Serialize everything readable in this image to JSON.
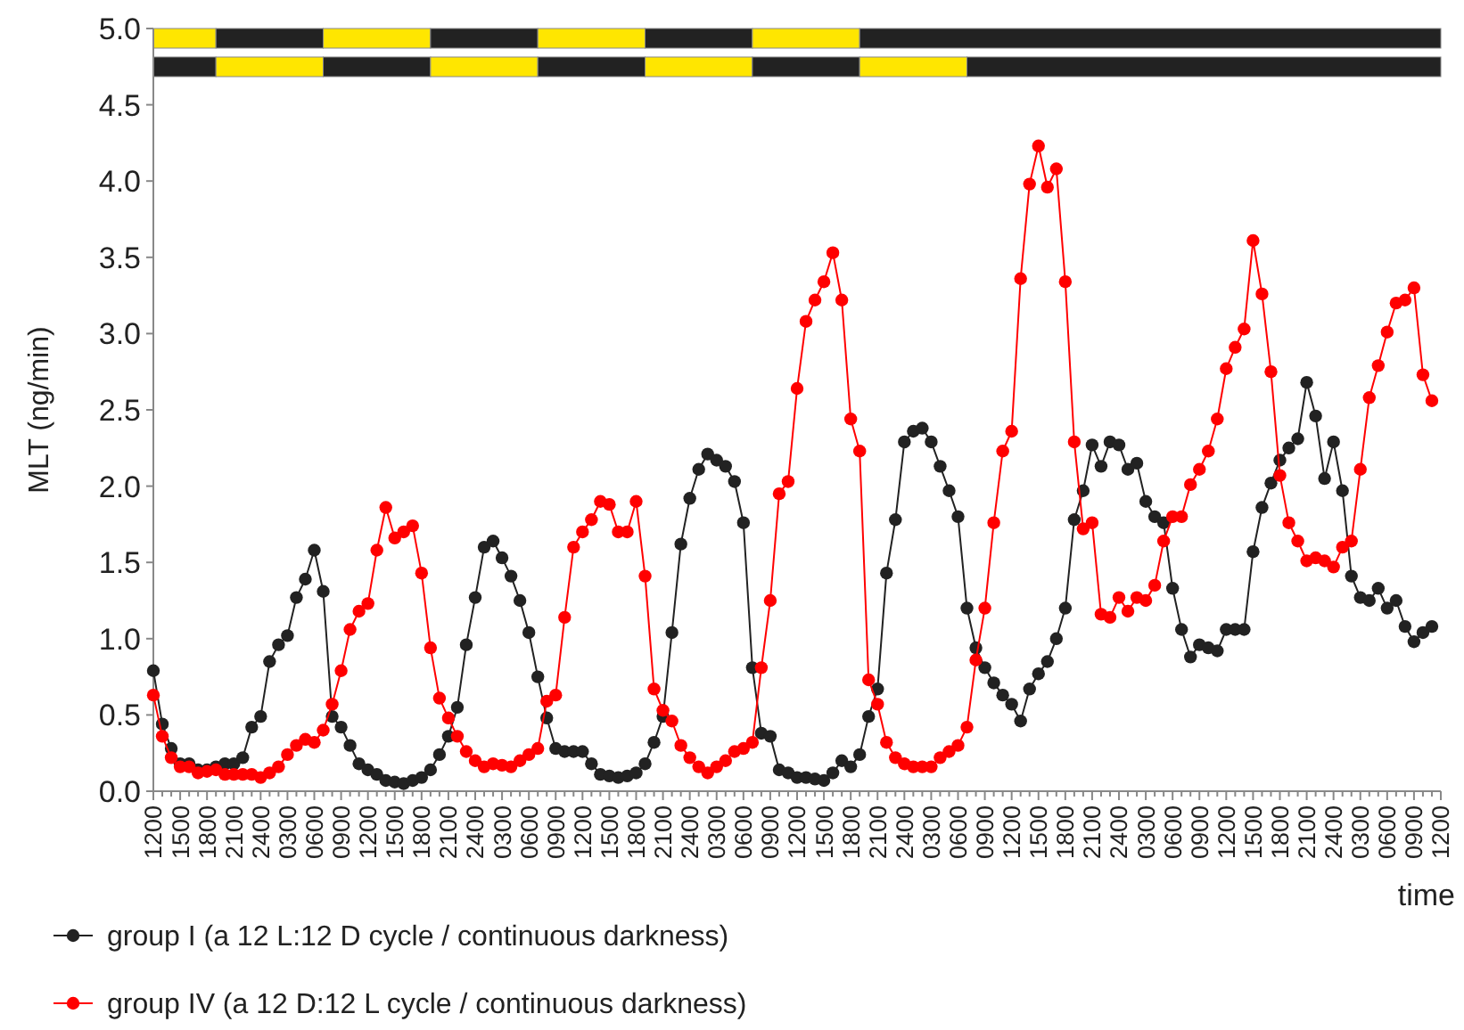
{
  "chart_data": {
    "type": "line",
    "ylabel": "MLT (ng/min)",
    "xlabel": "time",
    "categories": [
      "1200",
      null,
      null,
      "1500",
      null,
      null,
      "1800",
      null,
      null,
      "2100",
      null,
      null,
      "2400",
      null,
      null,
      "0300",
      null,
      null,
      "0600",
      null,
      null,
      "0900",
      null,
      null,
      "1200",
      null,
      null,
      "1500",
      null,
      null,
      "1800",
      null,
      null,
      "2100",
      null,
      null,
      "2400",
      null,
      null,
      "0300",
      null,
      null,
      "0600",
      null,
      null,
      "0900",
      null,
      null,
      "1200",
      null,
      null,
      "1500",
      null,
      null,
      "1800",
      null,
      null,
      "2100",
      null,
      null,
      "2400",
      null,
      null,
      "0300",
      null,
      null,
      "0600",
      null,
      null,
      "0900",
      null,
      null,
      "1200",
      null,
      null,
      "1500",
      null,
      null,
      "1800",
      null,
      null,
      "2100",
      null,
      null,
      "2400",
      null,
      null,
      "0300",
      null,
      null,
      "0600",
      null,
      null,
      "0900",
      null,
      null,
      "1200",
      null,
      null,
      "1500",
      null,
      null,
      "1800",
      null,
      null,
      "2100",
      null,
      null,
      "2400",
      null,
      null,
      "0300",
      null,
      null,
      "0600",
      null,
      null,
      "0900",
      null,
      null,
      "1200",
      null,
      null,
      "1500",
      null,
      null,
      "1800",
      null,
      null,
      "2100",
      null,
      null,
      "2400",
      null,
      null,
      "0300",
      null,
      null,
      "0600",
      null,
      null,
      "0900",
      null,
      null,
      "1200"
    ],
    "ylim": [
      0,
      5
    ],
    "yticks": [
      {
        "value": 0,
        "label": "0.0"
      },
      {
        "value": 0.5,
        "label": "0.5"
      },
      {
        "value": 1,
        "label": "1.0"
      },
      {
        "value": 1.5,
        "label": "1.5"
      },
      {
        "value": 2,
        "label": "2.0"
      },
      {
        "value": 2.5,
        "label": "2.5"
      },
      {
        "value": 3,
        "label": "3.0"
      },
      {
        "value": 3.5,
        "label": "3.5"
      },
      {
        "value": 4,
        "label": "4.0"
      },
      {
        "value": 4.5,
        "label": "4.5"
      },
      {
        "value": 5,
        "label": "5.0"
      }
    ],
    "legend": "bottom left",
    "marker": "circle",
    "line_style": "solid",
    "series": [
      {
        "name": "group I (a 12 L:12 D cycle / continuous darkness)",
        "color": "#222222",
        "values": [
          0.79,
          0.44,
          0.28,
          0.18,
          0.18,
          0.14,
          0.14,
          0.16,
          0.18,
          0.18,
          0.22,
          0.42,
          0.49,
          0.85,
          0.96,
          1.02,
          1.27,
          1.39,
          1.58,
          1.31,
          0.49,
          0.42,
          0.3,
          0.18,
          0.14,
          0.11,
          0.07,
          0.06,
          0.05,
          0.07,
          0.09,
          0.14,
          0.24,
          0.36,
          0.55,
          0.96,
          1.27,
          1.6,
          1.64,
          1.53,
          1.41,
          1.25,
          1.04,
          0.75,
          0.48,
          0.28,
          0.26,
          0.26,
          0.26,
          0.18,
          0.11,
          0.1,
          0.09,
          0.1,
          0.12,
          0.18,
          0.32,
          0.49,
          1.04,
          1.62,
          1.92,
          2.11,
          2.21,
          2.17,
          2.13,
          2.03,
          1.76,
          0.81,
          0.38,
          0.36,
          0.14,
          0.12,
          0.09,
          0.09,
          0.08,
          0.07,
          0.12,
          0.2,
          0.16,
          0.24,
          0.49,
          0.67,
          1.43,
          1.78,
          2.29,
          2.36,
          2.38,
          2.29,
          2.13,
          1.97,
          1.8,
          1.2,
          0.94,
          0.81,
          0.71,
          0.63,
          0.57,
          0.46,
          0.67,
          0.77,
          0.85,
          1.0,
          1.2,
          1.78,
          1.97,
          2.27,
          2.13,
          2.29,
          2.27,
          2.11,
          2.15,
          1.9,
          1.8,
          1.76,
          1.33,
          1.06,
          0.88,
          0.96,
          0.94,
          0.92,
          1.06,
          1.06,
          1.06,
          1.57,
          1.86,
          2.02,
          2.17,
          2.25,
          2.31,
          2.68,
          2.46,
          2.05,
          2.29,
          1.97,
          1.41,
          1.27,
          1.25,
          1.33,
          1.2,
          1.25,
          1.08,
          0.98,
          1.04,
          1.08,
          null
        ]
      },
      {
        "name": "group IV (a 12 D:12 L cycle / continuous darkness)",
        "color": "#ff0000",
        "values": [
          0.63,
          0.36,
          0.22,
          0.16,
          0.16,
          0.12,
          0.13,
          0.14,
          0.11,
          0.11,
          0.11,
          0.11,
          0.09,
          0.12,
          0.16,
          0.24,
          0.3,
          0.34,
          0.32,
          0.4,
          0.57,
          0.79,
          1.06,
          1.18,
          1.23,
          1.58,
          1.86,
          1.66,
          1.7,
          1.74,
          1.43,
          0.94,
          0.61,
          0.48,
          0.36,
          0.26,
          0.2,
          0.16,
          0.18,
          0.17,
          0.16,
          0.2,
          0.24,
          0.28,
          0.59,
          0.63,
          1.14,
          1.6,
          1.7,
          1.78,
          1.9,
          1.88,
          1.7,
          1.7,
          1.9,
          1.41,
          0.67,
          0.53,
          0.46,
          0.3,
          0.22,
          0.16,
          0.12,
          0.16,
          0.2,
          0.26,
          0.28,
          0.32,
          0.81,
          1.25,
          1.95,
          2.03,
          2.64,
          3.08,
          3.22,
          3.34,
          3.53,
          3.22,
          2.44,
          2.23,
          0.73,
          0.57,
          0.32,
          0.22,
          0.18,
          0.16,
          0.16,
          0.16,
          0.22,
          0.26,
          0.3,
          0.42,
          0.86,
          1.2,
          1.76,
          2.23,
          2.36,
          3.36,
          3.98,
          4.23,
          3.96,
          4.08,
          3.34,
          2.29,
          1.72,
          1.76,
          1.16,
          1.14,
          1.27,
          1.18,
          1.27,
          1.25,
          1.35,
          1.64,
          1.8,
          1.8,
          2.01,
          2.11,
          2.23,
          2.44,
          2.77,
          2.91,
          3.03,
          3.61,
          3.26,
          2.75,
          2.07,
          1.76,
          1.64,
          1.51,
          1.53,
          1.51,
          1.47,
          1.6,
          1.64,
          2.11,
          2.58,
          2.79,
          3.01,
          3.2,
          3.22,
          3.3,
          2.73,
          2.56,
          null
        ]
      }
    ]
  }
}
